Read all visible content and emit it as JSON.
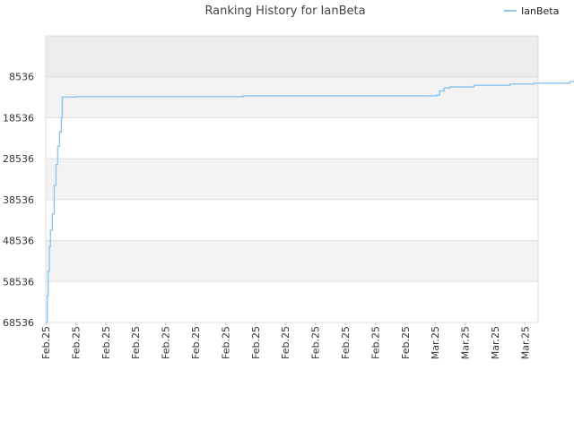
{
  "chart_data": {
    "type": "line",
    "title": "Ranking History for IanBeta",
    "xlabel": "",
    "ylabel": "",
    "y_inverted": true,
    "ylim": [
      68536,
      0
    ],
    "y_ticks": [
      8536,
      18536,
      28536,
      38536,
      48536,
      58536,
      68536
    ],
    "y_tick_labels": [
      "8536",
      "18536",
      "28536",
      "38536",
      "48536",
      "58536",
      "68536"
    ],
    "x_tick_labels": [
      "Feb.25",
      "Feb.25",
      "Feb.25",
      "Feb.25",
      "Feb.25",
      "Feb.25",
      "Feb.25",
      "Feb.25",
      "Feb.25",
      "Feb.25",
      "Feb.25",
      "Feb.25",
      "Feb.25",
      "Mar.25",
      "Mar.25",
      "Mar.25",
      "Mar.25"
    ],
    "grid": true,
    "legend_position": "top-right",
    "series_color": "#90c8f0",
    "band_colors": [
      "#ececec",
      "#f3f3f3",
      "#ffffff"
    ],
    "series": [
      {
        "name": "IanBeta",
        "points": [
          [
            0.0,
            68536
          ],
          [
            0.05,
            62000
          ],
          [
            0.08,
            56000
          ],
          [
            0.12,
            50000
          ],
          [
            0.16,
            46000
          ],
          [
            0.22,
            42000
          ],
          [
            0.28,
            35000
          ],
          [
            0.34,
            30000
          ],
          [
            0.4,
            25500
          ],
          [
            0.46,
            22000
          ],
          [
            0.52,
            18500
          ],
          [
            0.55,
            13500
          ],
          [
            1.0,
            13400
          ],
          [
            3.0,
            13400
          ],
          [
            5.0,
            13400
          ],
          [
            6.5,
            13400
          ],
          [
            6.6,
            13200
          ],
          [
            8.0,
            13200
          ],
          [
            10.0,
            13200
          ],
          [
            12.0,
            13200
          ],
          [
            12.9,
            13200
          ],
          [
            13.05,
            13000
          ],
          [
            13.15,
            12000
          ],
          [
            13.3,
            11300
          ],
          [
            13.5,
            11000
          ],
          [
            14.0,
            11000
          ],
          [
            14.3,
            10600
          ],
          [
            15.0,
            10600
          ],
          [
            15.5,
            10300
          ],
          [
            16.0,
            10300
          ],
          [
            16.3,
            10100
          ],
          [
            17.0,
            10100
          ],
          [
            17.5,
            9700
          ],
          [
            18.0,
            9700
          ]
        ]
      }
    ]
  }
}
